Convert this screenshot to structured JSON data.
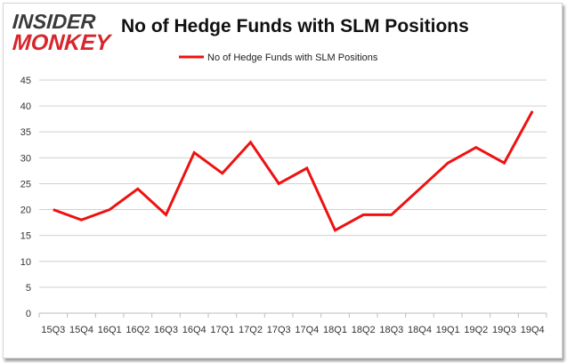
{
  "logo": {
    "line1": "INSIDER",
    "line2": "MONKEY"
  },
  "colors": {
    "series": "#ee1111",
    "grid": "#d0d0d0",
    "brand_red": "#d8262c"
  },
  "chart_data": {
    "type": "line",
    "title": "No of Hedge Funds with SLM Positions",
    "xlabel": "",
    "ylabel": "",
    "categories": [
      "15Q3",
      "15Q4",
      "16Q1",
      "16Q2",
      "16Q3",
      "16Q4",
      "17Q1",
      "17Q2",
      "17Q3",
      "17Q4",
      "18Q1",
      "18Q2",
      "18Q3",
      "18Q4",
      "19Q1",
      "19Q2",
      "19Q3",
      "19Q4"
    ],
    "series": [
      {
        "name": "No of Hedge Funds with SLM Positions",
        "values": [
          20,
          18,
          20,
          24,
          19,
          31,
          27,
          33,
          25,
          28,
          16,
          19,
          19,
          24,
          29,
          32,
          29,
          39
        ]
      }
    ],
    "ylim": [
      0,
      45
    ],
    "yticks": [
      0,
      5,
      10,
      15,
      20,
      25,
      30,
      35,
      40,
      45
    ],
    "grid": true,
    "legend_position": "top-center"
  }
}
